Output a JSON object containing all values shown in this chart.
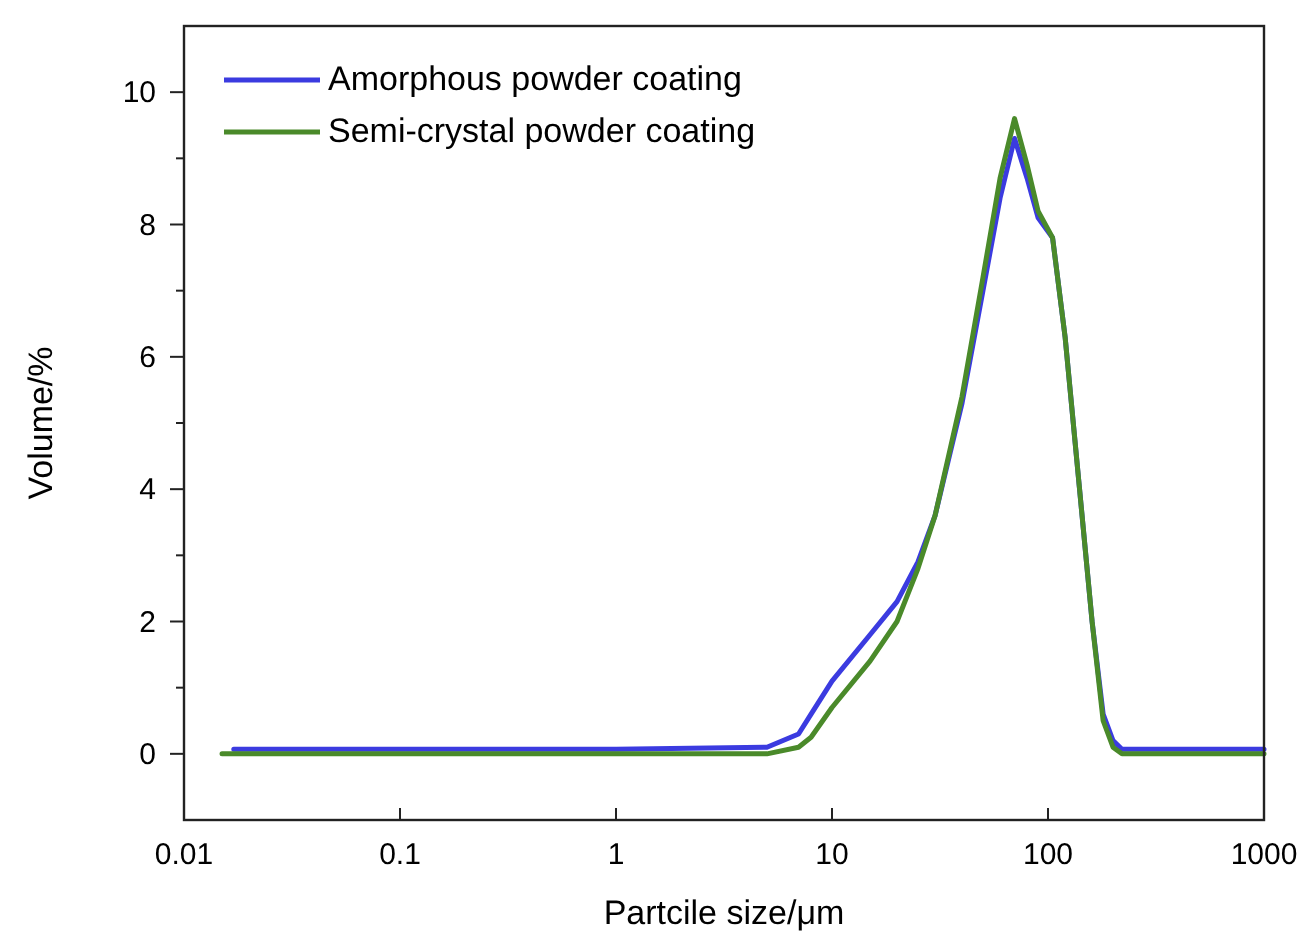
{
  "chart_data": {
    "type": "line",
    "xlabel": "Partcile size/μm",
    "ylabel": "Volume/%",
    "log": "x",
    "xlim": [
      0.01,
      1000
    ],
    "xticks": [
      {
        "value": 0.01,
        "label": "0.01"
      },
      0.1,
      1,
      10,
      100,
      1000
    ],
    "ylim": [
      -1,
      11
    ],
    "yticks": [
      0,
      {
        "value": 1,
        "label": null
      },
      2,
      {
        "value": 3,
        "label": null
      },
      4,
      {
        "value": 5,
        "label": null
      },
      6,
      {
        "value": 7,
        "label": null
      },
      8,
      {
        "value": 9,
        "label": null
      },
      10
    ],
    "legend": "top left",
    "grid": false,
    "marker": "none",
    "line_style": "solid",
    "series": [
      {
        "name": "Amorphous powder coating",
        "color": "#3b3be0",
        "x": [
          0.017,
          1,
          5,
          7,
          8,
          10,
          15,
          20,
          25,
          30,
          40,
          50,
          60,
          70,
          80,
          90,
          105,
          120,
          140,
          160,
          180,
          200,
          220,
          1000
        ],
        "values": [
          0.07,
          0.07,
          0.1,
          0.3,
          0.6,
          1.1,
          1.8,
          2.3,
          2.9,
          3.6,
          5.3,
          7.0,
          8.4,
          9.3,
          8.7,
          8.1,
          7.8,
          6.3,
          4.0,
          2.0,
          0.6,
          0.2,
          0.07,
          0.07
        ]
      },
      {
        "name": "Semi-crystal powder coating",
        "color": "#4a8a2a",
        "x": [
          0.015,
          1,
          5,
          7,
          8,
          10,
          15,
          20,
          25,
          30,
          40,
          50,
          60,
          70,
          80,
          90,
          105,
          120,
          140,
          160,
          180,
          200,
          220,
          1000
        ],
        "values": [
          0,
          0,
          0,
          0.1,
          0.25,
          0.7,
          1.4,
          2.0,
          2.8,
          3.6,
          5.4,
          7.2,
          8.7,
          9.6,
          8.9,
          8.2,
          7.8,
          6.3,
          4.0,
          2.0,
          0.5,
          0.1,
          0,
          0
        ]
      }
    ]
  }
}
